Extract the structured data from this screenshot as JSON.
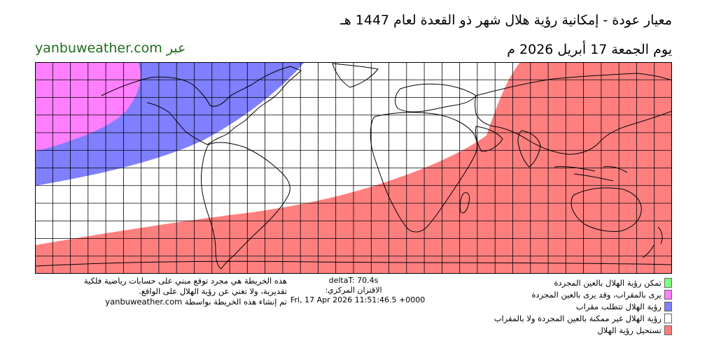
{
  "header": {
    "title": "معيار عودة - إمكانية رؤية هلال شهر ذو القعدة لعام 1447 هـ",
    "date": "يوم الجمعة 17 أبريل 2026 م",
    "via": "عبر yanbuweather.com"
  },
  "zones": [
    {
      "key": "naked_eye",
      "label": "تمكن رؤية الهلال بالعين المجردة",
      "color": "#7fff7f"
    },
    {
      "key": "telescope_maybe_naked",
      "label": "يرى بالمقراب، وقد يرى بالعين المجردة",
      "color": "#ff7fff"
    },
    {
      "key": "telescope",
      "label": "رؤية الهلال تتطلب مقراب",
      "color": "#7f7fff"
    },
    {
      "key": "not_possible",
      "label": "رؤية الهلال غير ممكنة بالعين المجردة ولا بالمقراب",
      "color": "#ffffff"
    },
    {
      "key": "impossible",
      "label": "تستحيل رؤية الهلال",
      "color": "#ff7f7f"
    }
  ],
  "disclaimer": {
    "line1": "هذه الخريطة هي مجرد توقع مبني على حسابات رياضية فلكية",
    "line2": "تقديرية، ولا تغني عن رؤية الهلال على الواقع.",
    "line3": "تم إنشاء هذه الخريطة بواسطة yanbuweather.com"
  },
  "astro": {
    "deltat": "deltaT: 70.4s",
    "conjunction_label": "الاقتران المركزي:",
    "conjunction_time": "Fri, 17 Apr 2026 11:51:46.5 +0000"
  }
}
